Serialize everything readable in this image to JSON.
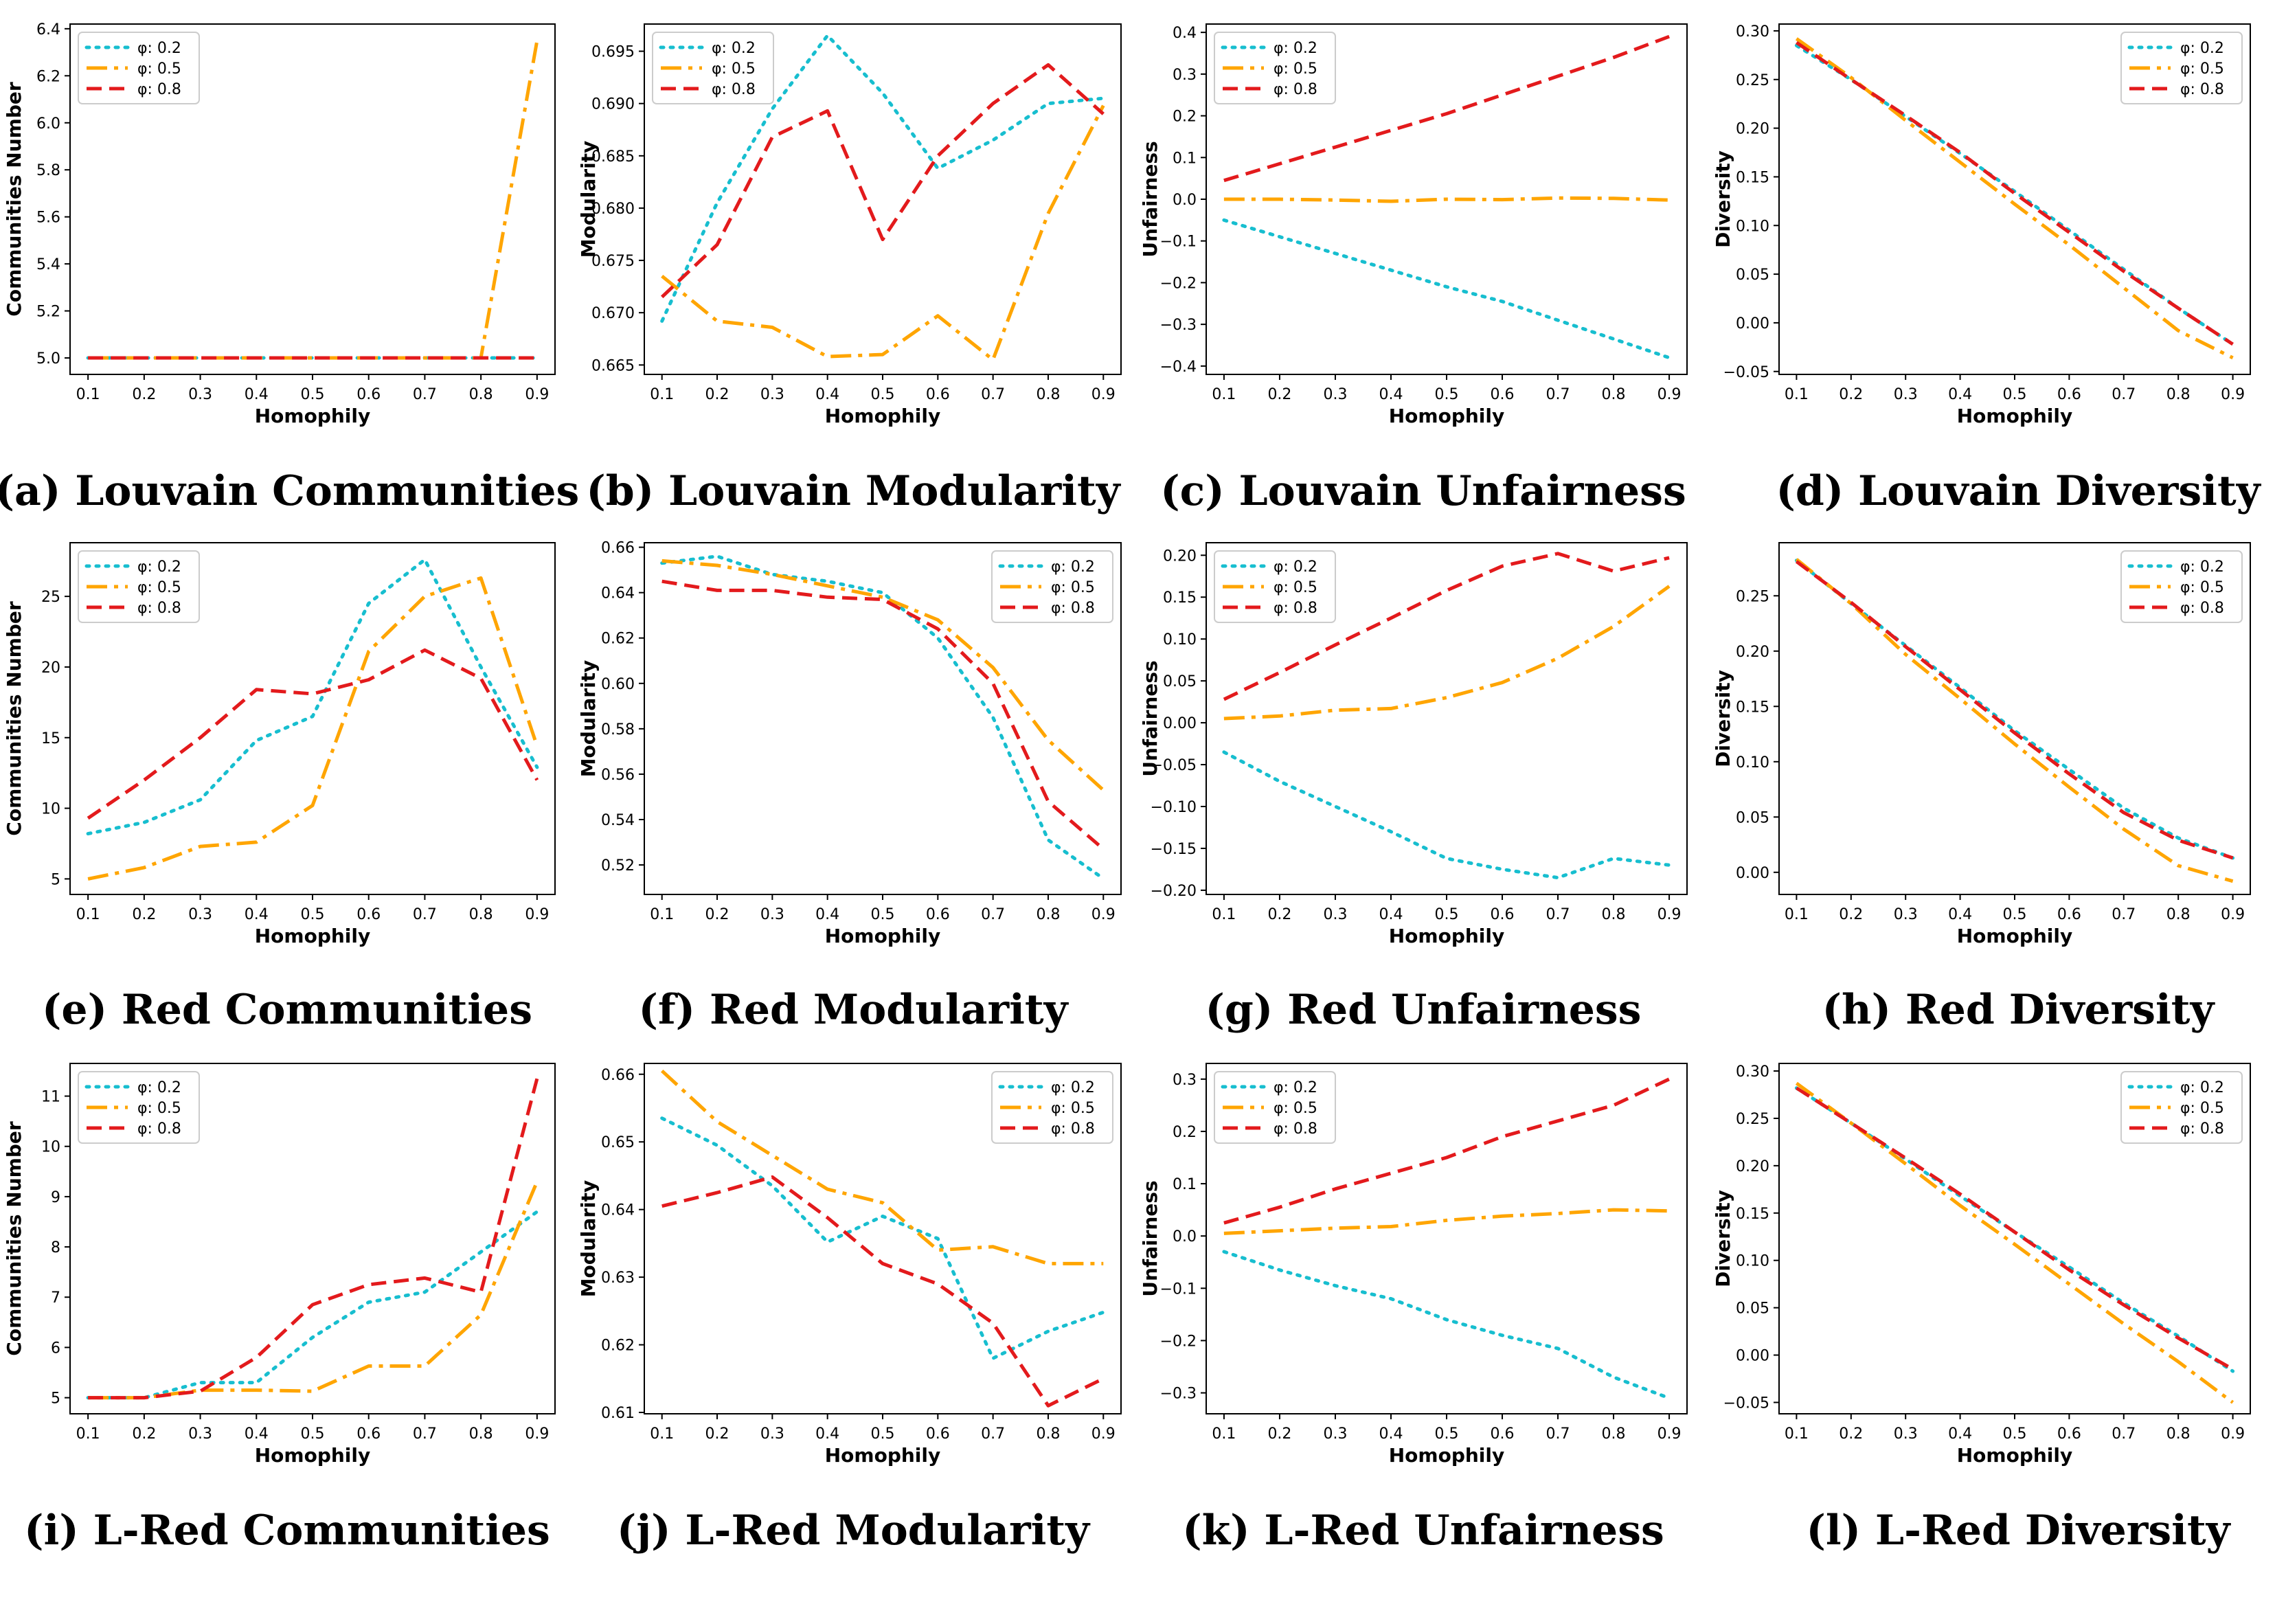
{
  "legend_labels": [
    "φ: 0.2",
    "φ: 0.5",
    "φ: 0.8"
  ],
  "series_colors": [
    "#17becf",
    "#ffa500",
    "#e31a1c"
  ],
  "chart_data": [
    {
      "type": "line",
      "caption": "(a) Louvain Communities",
      "xlabel": "Homophily",
      "ylabel": "Communities Number",
      "x": [
        0.1,
        0.2,
        0.3,
        0.4,
        0.5,
        0.6,
        0.7,
        0.8,
        0.9
      ],
      "ylim": [
        4.93,
        6.42
      ],
      "yticks": [
        5.0,
        5.2,
        5.4,
        5.6,
        5.8,
        6.0,
        6.2,
        6.4
      ],
      "ytick_labels": [
        "5.0",
        "5.2",
        "5.4",
        "5.6",
        "5.8",
        "6.0",
        "6.2",
        "6.4"
      ],
      "legend": "top-left",
      "series": [
        {
          "name": "φ: 0.2",
          "values": [
            5,
            5,
            5,
            5,
            5,
            5,
            5,
            5,
            5
          ]
        },
        {
          "name": "φ: 0.5",
          "values": [
            5,
            5,
            5,
            5,
            5,
            5,
            5,
            5,
            6.35
          ]
        },
        {
          "name": "φ: 0.8",
          "values": [
            5,
            5,
            5,
            5,
            5,
            5,
            5,
            5,
            5
          ]
        }
      ]
    },
    {
      "type": "line",
      "caption": "(b) Louvain Modularity",
      "xlabel": "Homophily",
      "ylabel": "Modularity",
      "x": [
        0.1,
        0.2,
        0.3,
        0.4,
        0.5,
        0.6,
        0.7,
        0.8,
        0.9
      ],
      "ylim": [
        0.6641,
        0.6976
      ],
      "yticks": [
        0.665,
        0.67,
        0.675,
        0.68,
        0.685,
        0.69,
        0.695
      ],
      "ytick_labels": [
        "0.665",
        "0.670",
        "0.675",
        "0.680",
        "0.685",
        "0.690",
        "0.695"
      ],
      "legend": "top-left",
      "series": [
        {
          "name": "φ: 0.2",
          "values": [
            0.6692,
            0.6805,
            0.6895,
            0.6965,
            0.691,
            0.6838,
            0.6865,
            0.69,
            0.6905
          ]
        },
        {
          "name": "φ: 0.5",
          "values": [
            0.6735,
            0.6692,
            0.6686,
            0.6658,
            0.666,
            0.6697,
            0.6655,
            0.6795,
            0.6898
          ]
        },
        {
          "name": "φ: 0.8",
          "values": [
            0.6715,
            0.6765,
            0.6868,
            0.6893,
            0.677,
            0.685,
            0.69,
            0.6937,
            0.689
          ]
        }
      ]
    },
    {
      "type": "line",
      "caption": "(c) Louvain Unfairness",
      "xlabel": "Homophily",
      "ylabel": "Unfairness",
      "x": [
        0.1,
        0.2,
        0.3,
        0.4,
        0.5,
        0.6,
        0.7,
        0.8,
        0.9
      ],
      "ylim": [
        -0.42,
        0.42
      ],
      "yticks": [
        -0.4,
        -0.3,
        -0.2,
        -0.1,
        0.0,
        0.1,
        0.2,
        0.3,
        0.4
      ],
      "ytick_labels": [
        "−0.4",
        "−0.3",
        "−0.2",
        "−0.1",
        "0.0",
        "0.1",
        "0.2",
        "0.3",
        "0.4"
      ],
      "legend": "top-left",
      "series": [
        {
          "name": "φ: 0.2",
          "values": [
            -0.05,
            -0.09,
            -0.13,
            -0.17,
            -0.21,
            -0.245,
            -0.29,
            -0.335,
            -0.38
          ]
        },
        {
          "name": "φ: 0.5",
          "values": [
            0.0,
            0.0,
            -0.002,
            -0.005,
            0.0,
            -0.001,
            0.003,
            0.002,
            -0.002
          ]
        },
        {
          "name": "φ: 0.8",
          "values": [
            0.045,
            0.085,
            0.125,
            0.165,
            0.205,
            0.25,
            0.295,
            0.34,
            0.39
          ]
        }
      ]
    },
    {
      "type": "line",
      "caption": "(d) Louvain Diversity",
      "xlabel": "Homophily",
      "ylabel": "Diversity",
      "x": [
        0.1,
        0.2,
        0.3,
        0.4,
        0.5,
        0.6,
        0.7,
        0.8,
        0.9
      ],
      "ylim": [
        -0.053,
        0.307
      ],
      "yticks": [
        -0.05,
        0.0,
        0.05,
        0.1,
        0.15,
        0.2,
        0.25,
        0.3
      ],
      "ytick_labels": [
        "−0.05",
        "0.00",
        "0.05",
        "0.10",
        "0.15",
        "0.20",
        "0.25",
        "0.30"
      ],
      "legend": "top-right",
      "series": [
        {
          "name": "φ: 0.2",
          "values": [
            0.285,
            0.25,
            0.212,
            0.174,
            0.135,
            0.095,
            0.055,
            0.015,
            -0.022
          ]
        },
        {
          "name": "φ: 0.5",
          "values": [
            0.292,
            0.252,
            0.208,
            0.165,
            0.122,
            0.08,
            0.036,
            -0.008,
            -0.036
          ]
        },
        {
          "name": "φ: 0.8",
          "values": [
            0.288,
            0.25,
            0.213,
            0.175,
            0.133,
            0.093,
            0.053,
            0.015,
            -0.022
          ]
        }
      ]
    },
    {
      "type": "line",
      "caption": "(e) Red Communities",
      "xlabel": "Homophily",
      "ylabel": "Communities Number",
      "x": [
        0.1,
        0.2,
        0.3,
        0.4,
        0.5,
        0.6,
        0.7,
        0.8,
        0.9
      ],
      "ylim": [
        3.9,
        28.8
      ],
      "yticks": [
        5,
        10,
        15,
        20,
        25
      ],
      "ytick_labels": [
        "5",
        "10",
        "15",
        "20",
        "25"
      ],
      "legend": "top-left",
      "series": [
        {
          "name": "φ: 0.2",
          "values": [
            8.2,
            9.0,
            10.6,
            14.8,
            16.5,
            24.5,
            27.6,
            20.0,
            12.9
          ]
        },
        {
          "name": "φ: 0.5",
          "values": [
            5.0,
            5.8,
            7.3,
            7.6,
            10.2,
            21.1,
            25.0,
            26.3,
            14.4
          ]
        },
        {
          "name": "φ: 0.8",
          "values": [
            9.3,
            12.0,
            15.0,
            18.4,
            18.1,
            19.1,
            21.2,
            19.2,
            12.0
          ]
        }
      ]
    },
    {
      "type": "line",
      "caption": "(f) Red Modularity",
      "xlabel": "Homophily",
      "ylabel": "Modularity",
      "x": [
        0.1,
        0.2,
        0.3,
        0.4,
        0.5,
        0.6,
        0.7,
        0.8,
        0.9
      ],
      "ylim": [
        0.507,
        0.662
      ],
      "yticks": [
        0.52,
        0.54,
        0.56,
        0.58,
        0.6,
        0.62,
        0.64,
        0.66
      ],
      "ytick_labels": [
        "0.52",
        "0.54",
        "0.56",
        "0.58",
        "0.60",
        "0.62",
        "0.64",
        "0.66"
      ],
      "legend": "top-right",
      "series": [
        {
          "name": "φ: 0.2",
          "values": [
            0.653,
            0.656,
            0.648,
            0.645,
            0.64,
            0.62,
            0.585,
            0.531,
            0.514
          ]
        },
        {
          "name": "φ: 0.5",
          "values": [
            0.654,
            0.652,
            0.648,
            0.643,
            0.638,
            0.628,
            0.607,
            0.575,
            0.553
          ]
        },
        {
          "name": "φ: 0.8",
          "values": [
            0.645,
            0.641,
            0.641,
            0.638,
            0.637,
            0.624,
            0.6,
            0.548,
            0.527
          ]
        }
      ]
    },
    {
      "type": "line",
      "caption": "(g) Red Unfairness",
      "xlabel": "Homophily",
      "ylabel": "Unfairness",
      "x": [
        0.1,
        0.2,
        0.3,
        0.4,
        0.5,
        0.6,
        0.7,
        0.8,
        0.9
      ],
      "ylim": [
        -0.205,
        0.215
      ],
      "yticks": [
        -0.2,
        -0.15,
        -0.1,
        -0.05,
        0.0,
        0.05,
        0.1,
        0.15,
        0.2
      ],
      "ytick_labels": [
        "−0.20",
        "−0.15",
        "−0.10",
        "−0.05",
        "0.00",
        "0.05",
        "0.10",
        "0.15",
        "0.20"
      ],
      "legend": "top-left",
      "series": [
        {
          "name": "φ: 0.2",
          "values": [
            -0.035,
            -0.07,
            -0.1,
            -0.13,
            -0.162,
            -0.175,
            -0.185,
            -0.162,
            -0.17
          ]
        },
        {
          "name": "φ: 0.5",
          "values": [
            0.005,
            0.008,
            0.015,
            0.017,
            0.03,
            0.048,
            0.077,
            0.115,
            0.163
          ]
        },
        {
          "name": "φ: 0.8",
          "values": [
            0.028,
            0.06,
            0.093,
            0.125,
            0.158,
            0.187,
            0.202,
            0.181,
            0.197
          ]
        }
      ]
    },
    {
      "type": "line",
      "caption": "(h) Red Diversity",
      "xlabel": "Homophily",
      "ylabel": "Diversity",
      "x": [
        0.1,
        0.2,
        0.3,
        0.4,
        0.5,
        0.6,
        0.7,
        0.8,
        0.9
      ],
      "ylim": [
        -0.02,
        0.298
      ],
      "yticks": [
        0.0,
        0.05,
        0.1,
        0.15,
        0.2,
        0.25
      ],
      "ytick_labels": [
        "0.00",
        "0.05",
        "0.10",
        "0.15",
        "0.20",
        "0.25"
      ],
      "legend": "top-right",
      "series": [
        {
          "name": "φ: 0.2",
          "values": [
            0.282,
            0.243,
            0.205,
            0.167,
            0.128,
            0.093,
            0.058,
            0.031,
            0.013
          ]
        },
        {
          "name": "φ: 0.5",
          "values": [
            0.283,
            0.243,
            0.197,
            0.157,
            0.116,
            0.077,
            0.039,
            0.006,
            -0.008
          ]
        },
        {
          "name": "φ: 0.8",
          "values": [
            0.281,
            0.244,
            0.204,
            0.165,
            0.126,
            0.089,
            0.054,
            0.029,
            0.013
          ]
        }
      ]
    },
    {
      "type": "line",
      "caption": "(i) L-Red Communities",
      "xlabel": "Homophily",
      "ylabel": "Communities Number",
      "x": [
        0.1,
        0.2,
        0.3,
        0.4,
        0.5,
        0.6,
        0.7,
        0.8,
        0.9
      ],
      "ylim": [
        4.68,
        11.65
      ],
      "yticks": [
        5,
        6,
        7,
        8,
        9,
        10,
        11
      ],
      "ytick_labels": [
        "5",
        "6",
        "7",
        "8",
        "9",
        "10",
        "11"
      ],
      "legend": "top-left",
      "series": [
        {
          "name": "φ: 0.2",
          "values": [
            5.0,
            5.0,
            5.3,
            5.3,
            6.2,
            6.9,
            7.1,
            7.9,
            8.7
          ]
        },
        {
          "name": "φ: 0.5",
          "values": [
            5.0,
            5.0,
            5.15,
            5.15,
            5.13,
            5.63,
            5.63,
            6.65,
            9.3
          ]
        },
        {
          "name": "φ: 0.8",
          "values": [
            5.0,
            5.0,
            5.13,
            5.8,
            6.85,
            7.25,
            7.38,
            7.1,
            11.35
          ]
        }
      ]
    },
    {
      "type": "line",
      "caption": "(j) L-Red Modularity",
      "xlabel": "Homophily",
      "ylabel": "Modularity",
      "x": [
        0.1,
        0.2,
        0.3,
        0.4,
        0.5,
        0.6,
        0.7,
        0.8,
        0.9
      ],
      "ylim": [
        0.6098,
        0.6616
      ],
      "yticks": [
        0.61,
        0.62,
        0.63,
        0.64,
        0.65,
        0.66
      ],
      "ytick_labels": [
        "0.61",
        "0.62",
        "0.63",
        "0.64",
        "0.65",
        "0.66"
      ],
      "legend": "top-right",
      "series": [
        {
          "name": "φ: 0.2",
          "values": [
            0.6535,
            0.6495,
            0.6435,
            0.6352,
            0.639,
            0.6357,
            0.618,
            0.622,
            0.6248
          ]
        },
        {
          "name": "φ: 0.5",
          "values": [
            0.6605,
            0.653,
            0.648,
            0.643,
            0.641,
            0.634,
            0.6345,
            0.632,
            0.632
          ]
        },
        {
          "name": "φ: 0.8",
          "values": [
            0.6405,
            0.6425,
            0.6448,
            0.6388,
            0.632,
            0.629,
            0.6232,
            0.611,
            0.615
          ]
        }
      ]
    },
    {
      "type": "line",
      "caption": "(k) L-Red Unfairness",
      "xlabel": "Homophily",
      "ylabel": "Unfairness",
      "x": [
        0.1,
        0.2,
        0.3,
        0.4,
        0.5,
        0.6,
        0.7,
        0.8,
        0.9
      ],
      "ylim": [
        -0.34,
        0.33
      ],
      "yticks": [
        -0.3,
        -0.2,
        -0.1,
        0.0,
        0.1,
        0.2,
        0.3
      ],
      "ytick_labels": [
        "−0.3",
        "−0.2",
        "−0.1",
        "0.0",
        "0.1",
        "0.2",
        "0.3"
      ],
      "legend": "top-left",
      "series": [
        {
          "name": "φ: 0.2",
          "values": [
            -0.03,
            -0.065,
            -0.095,
            -0.12,
            -0.16,
            -0.19,
            -0.215,
            -0.27,
            -0.31
          ]
        },
        {
          "name": "φ: 0.5",
          "values": [
            0.005,
            0.01,
            0.015,
            0.018,
            0.03,
            0.038,
            0.043,
            0.05,
            0.048
          ]
        },
        {
          "name": "φ: 0.8",
          "values": [
            0.025,
            0.055,
            0.09,
            0.12,
            0.15,
            0.19,
            0.22,
            0.25,
            0.3
          ]
        }
      ]
    },
    {
      "type": "line",
      "caption": "(l) L-Red Diversity",
      "xlabel": "Homophily",
      "ylabel": "Diversity",
      "x": [
        0.1,
        0.2,
        0.3,
        0.4,
        0.5,
        0.6,
        0.7,
        0.8,
        0.9
      ],
      "ylim": [
        -0.062,
        0.308
      ],
      "yticks": [
        -0.05,
        0.0,
        0.05,
        0.1,
        0.15,
        0.2,
        0.25,
        0.3
      ],
      "ytick_labels": [
        "−0.05",
        "0.00",
        "0.05",
        "0.10",
        "0.15",
        "0.20",
        "0.25",
        "0.30"
      ],
      "legend": "top-right",
      "series": [
        {
          "name": "φ: 0.2",
          "values": [
            0.282,
            0.245,
            0.207,
            0.168,
            0.13,
            0.093,
            0.055,
            0.02,
            -0.017
          ]
        },
        {
          "name": "φ: 0.5",
          "values": [
            0.287,
            0.245,
            0.202,
            0.158,
            0.117,
            0.075,
            0.033,
            -0.007,
            -0.05
          ]
        },
        {
          "name": "φ: 0.8",
          "values": [
            0.282,
            0.245,
            0.208,
            0.17,
            0.13,
            0.09,
            0.053,
            0.018,
            -0.015
          ]
        }
      ]
    }
  ]
}
